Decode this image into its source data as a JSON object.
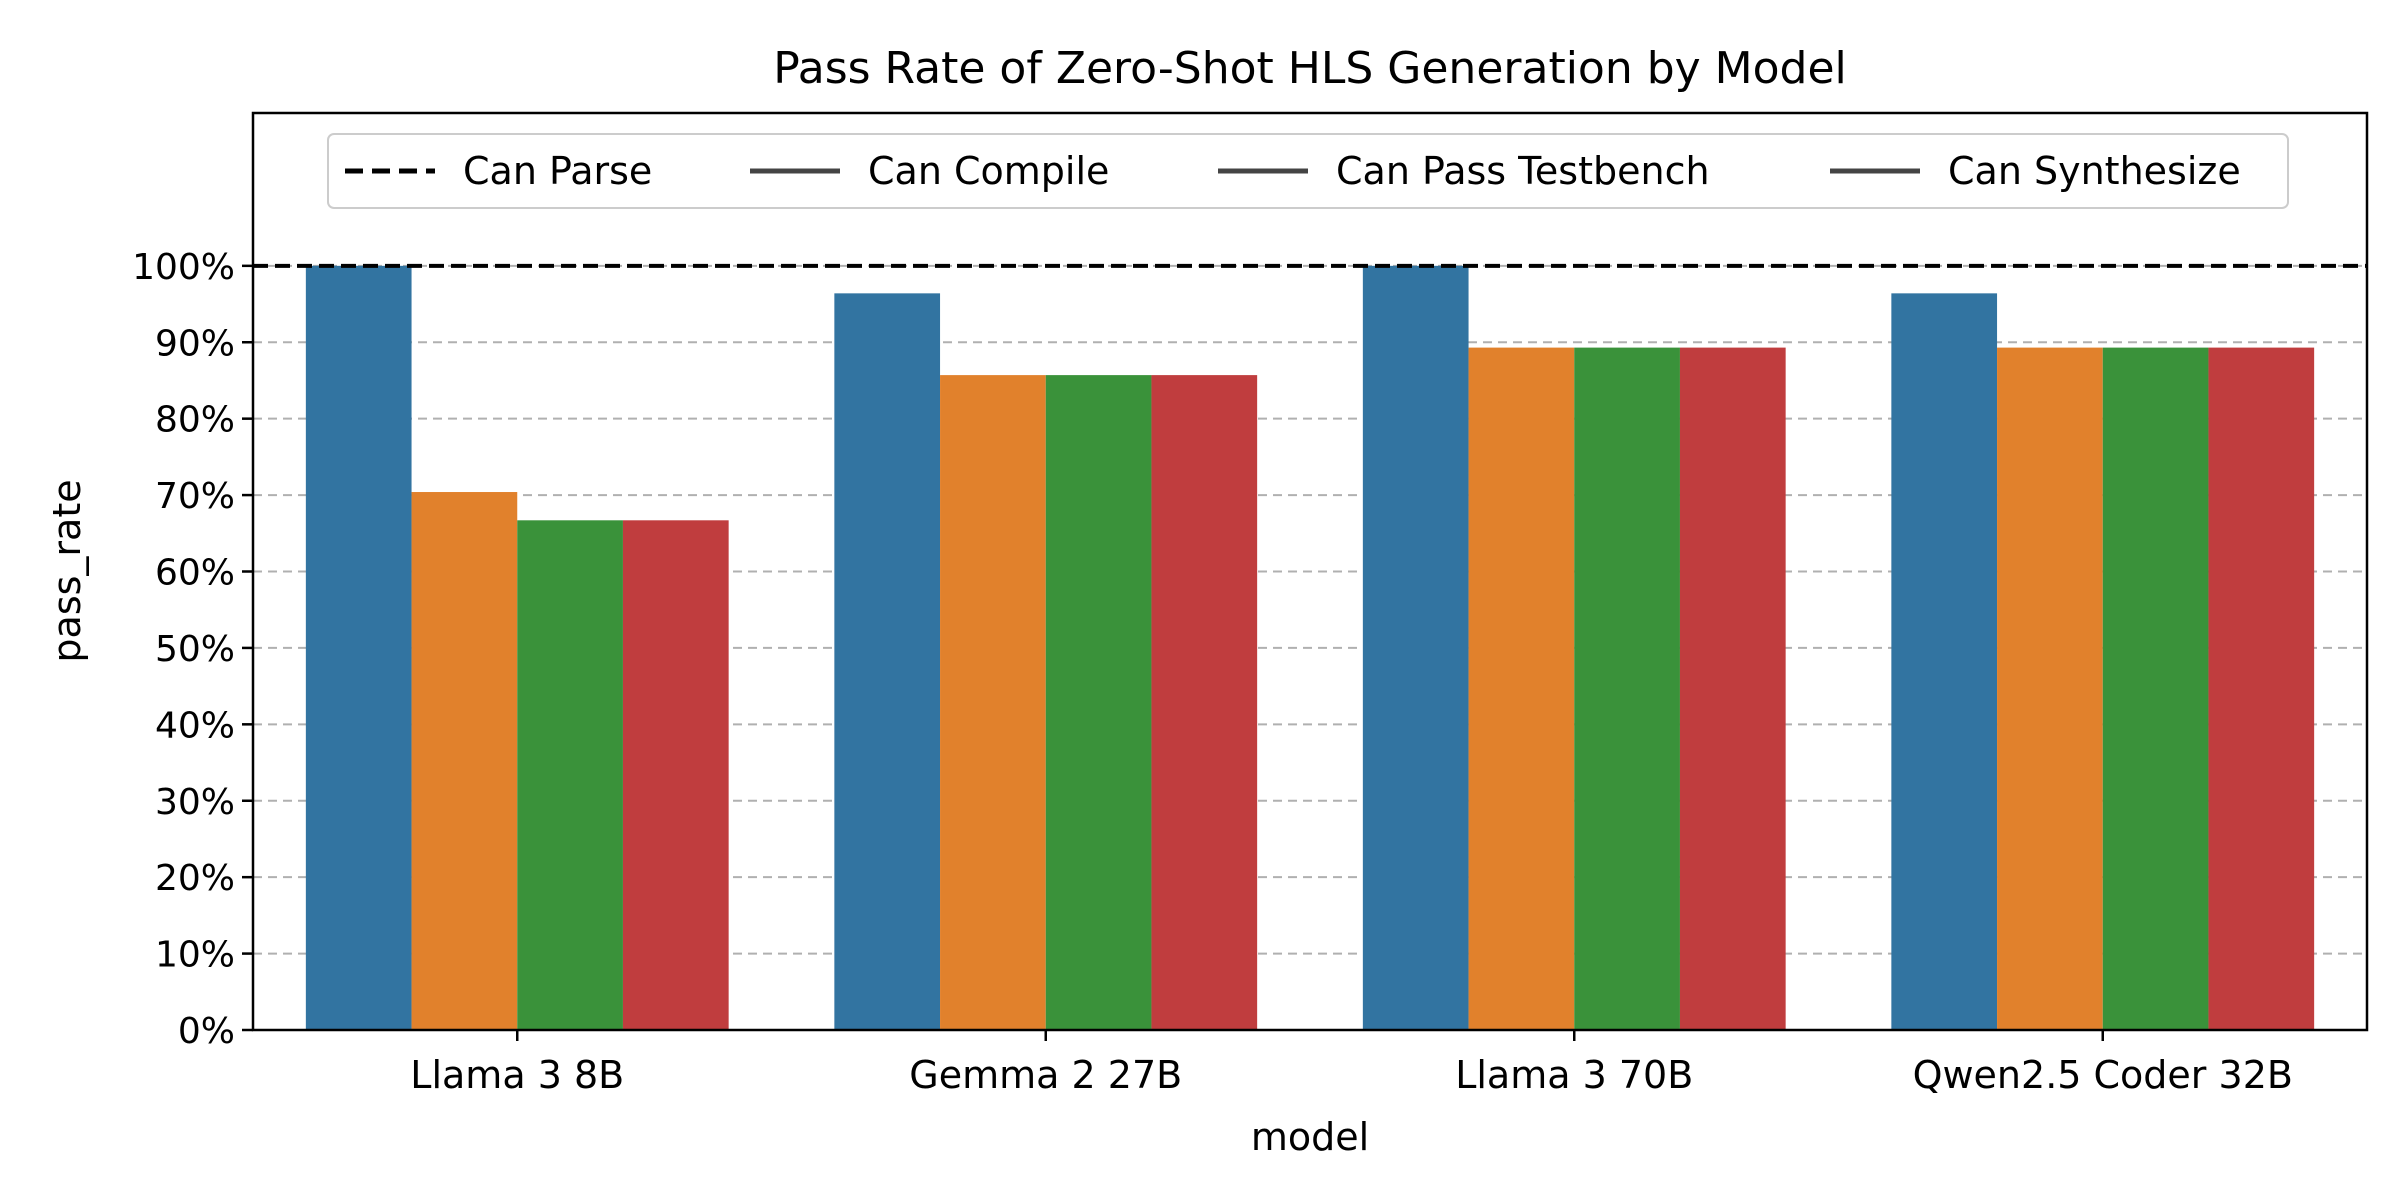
{
  "chart_data": {
    "type": "bar",
    "title": "Pass Rate of Zero-Shot HLS Generation by Model",
    "xlabel": "model",
    "ylabel": "pass_rate",
    "ylim": [
      0,
      120
    ],
    "yticks": [
      0,
      10,
      20,
      30,
      40,
      50,
      60,
      70,
      80,
      90,
      100
    ],
    "ytick_labels": [
      "0%",
      "10%",
      "20%",
      "30%",
      "40%",
      "50%",
      "60%",
      "70%",
      "80%",
      "90%",
      "100%"
    ],
    "grid": "y-dashed",
    "categories": [
      "Llama 3 8B",
      "Gemma 2 27B",
      "Llama 3 70B",
      "Qwen2.5 Coder 32B"
    ],
    "series": [
      {
        "name": "Can Parse",
        "color": "#3274a1",
        "values": [
          100,
          96.4,
          100,
          96.4
        ]
      },
      {
        "name": "Can Compile",
        "color": "#e1812c",
        "values": [
          70.4,
          85.7,
          89.3,
          89.3
        ]
      },
      {
        "name": "Can Pass Testbench",
        "color": "#3a923a",
        "values": [
          66.7,
          85.7,
          89.3,
          89.3
        ]
      },
      {
        "name": "Can Synthesize",
        "color": "#c03d3e",
        "values": [
          66.7,
          85.7,
          89.3,
          89.3
        ]
      }
    ],
    "reference_line": {
      "value": 100,
      "style": "dashed",
      "color": "#000000"
    },
    "legend": {
      "placement": "upper-center",
      "entries": [
        {
          "label": "Can Parse",
          "line_style": "dashed",
          "color": "#000000"
        },
        {
          "label": "Can Compile",
          "line_style": "solid",
          "color": "#444444"
        },
        {
          "label": "Can Pass Testbench",
          "line_style": "solid",
          "color": "#444444"
        },
        {
          "label": "Can Synthesize",
          "line_style": "solid",
          "color": "#444444"
        }
      ]
    }
  }
}
